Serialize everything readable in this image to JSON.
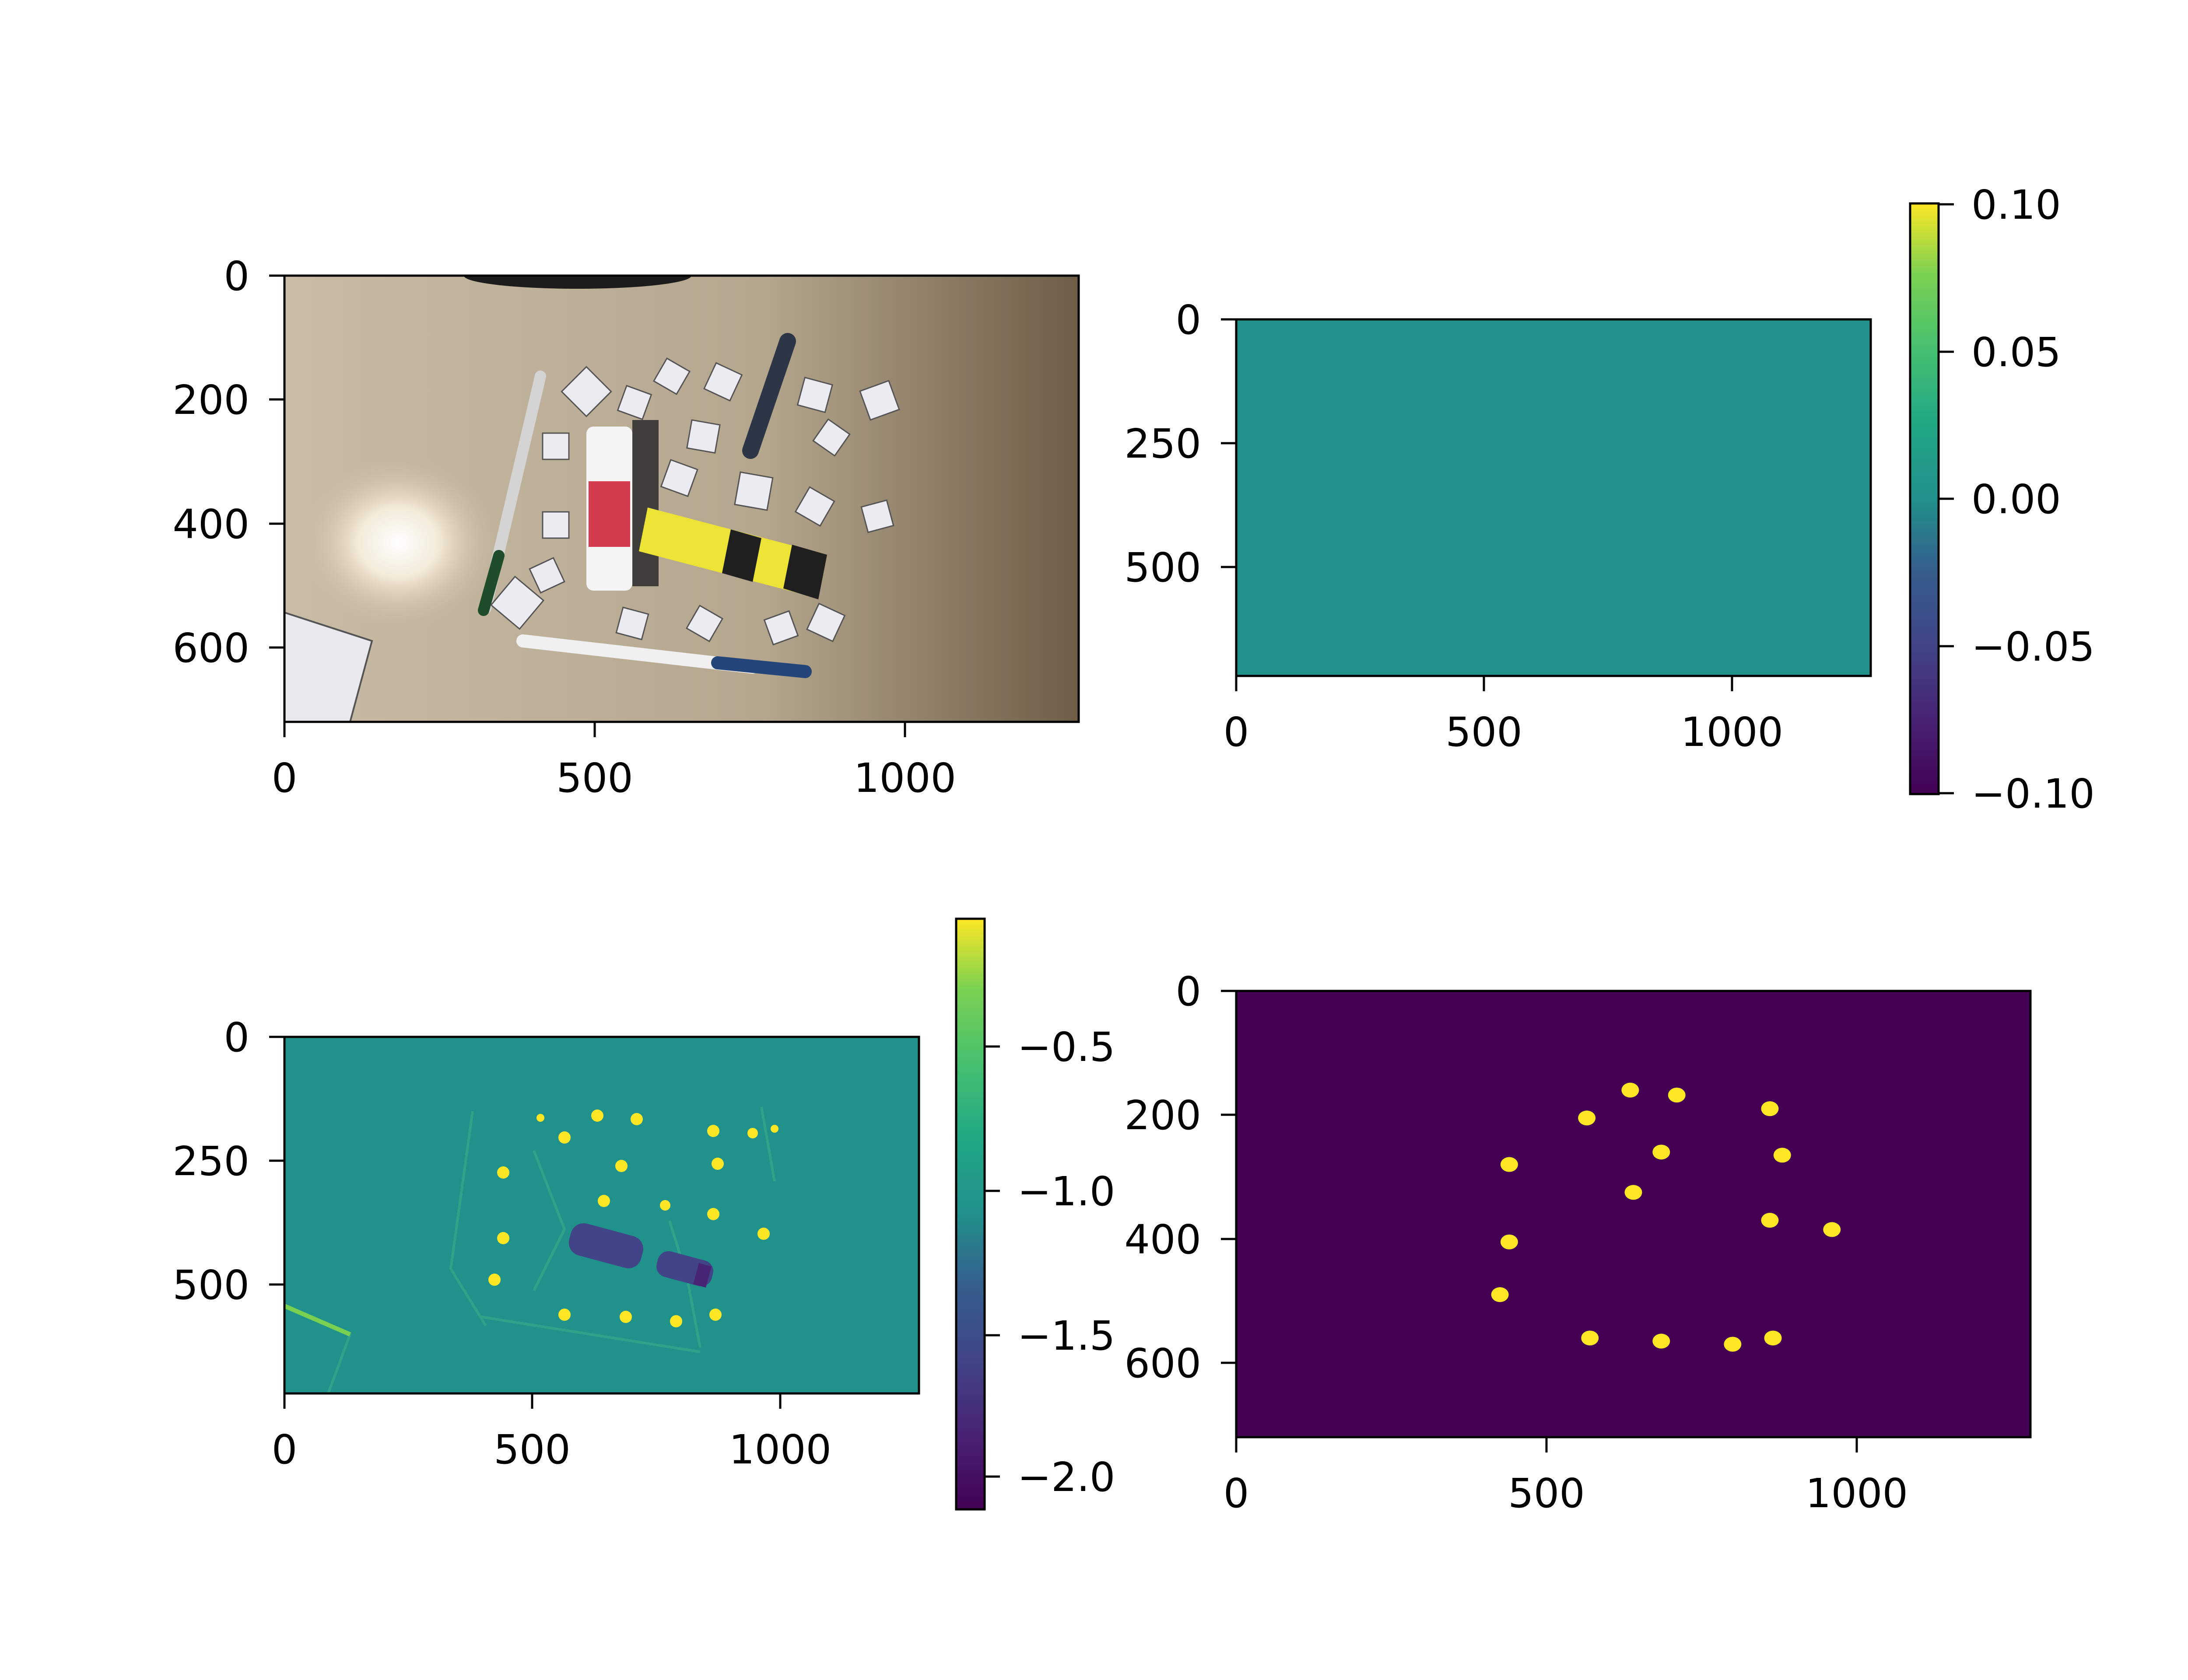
{
  "chart_data": [
    {
      "type": "image",
      "content": "photo of desk with pens, glue stick, highlighter and letter cards",
      "xticks": [
        0,
        500,
        1000
      ],
      "yticks": [
        0,
        200,
        400,
        600
      ],
      "xlim": [
        0,
        1280
      ],
      "ylim": [
        720,
        0
      ],
      "colorbar": null
    },
    {
      "type": "heatmap",
      "content": "uniform constant field",
      "value": 0.0,
      "xticks": [
        0,
        500,
        1000
      ],
      "yticks": [
        0,
        250,
        500
      ],
      "xlim": [
        0,
        1280
      ],
      "ylim": [
        720,
        0
      ],
      "colormap": "viridis",
      "colorbar": {
        "ticks": [
          "0.10",
          "0.05",
          "0.00",
          "−0.05",
          "−0.10"
        ],
        "range": [
          -0.1,
          0.1
        ]
      }
    },
    {
      "type": "heatmap",
      "content": "gradient response map of the scene",
      "xticks": [
        0,
        500,
        1000
      ],
      "yticks": [
        0,
        250,
        500
      ],
      "xlim": [
        0,
        1280
      ],
      "ylim": [
        720,
        0
      ],
      "colormap": "viridis",
      "colorbar": {
        "ticks": [
          "−0.5",
          "−1.0",
          "−1.5",
          "−2.0"
        ],
        "range": [
          -2.15,
          -0.05
        ]
      }
    },
    {
      "type": "heatmap",
      "content": "binary mask of detected blobs",
      "xticks": [
        0,
        500,
        1000
      ],
      "yticks": [
        0,
        200,
        400,
        600
      ],
      "xlim": [
        0,
        1280
      ],
      "ylim": [
        720,
        0
      ],
      "colormap": "viridis",
      "blobs": [
        {
          "x": 635,
          "y": 160
        },
        {
          "x": 710,
          "y": 168
        },
        {
          "x": 565,
          "y": 205
        },
        {
          "x": 860,
          "y": 190
        },
        {
          "x": 685,
          "y": 260
        },
        {
          "x": 880,
          "y": 265
        },
        {
          "x": 440,
          "y": 280
        },
        {
          "x": 640,
          "y": 325
        },
        {
          "x": 860,
          "y": 370
        },
        {
          "x": 960,
          "y": 385
        },
        {
          "x": 440,
          "y": 405
        },
        {
          "x": 425,
          "y": 490
        },
        {
          "x": 570,
          "y": 560
        },
        {
          "x": 685,
          "y": 565
        },
        {
          "x": 800,
          "y": 570
        },
        {
          "x": 865,
          "y": 560
        }
      ]
    }
  ],
  "colors": {
    "viridis_low": "#440154",
    "viridis_mid": "#21918c",
    "viridis_high": "#fde725"
  }
}
